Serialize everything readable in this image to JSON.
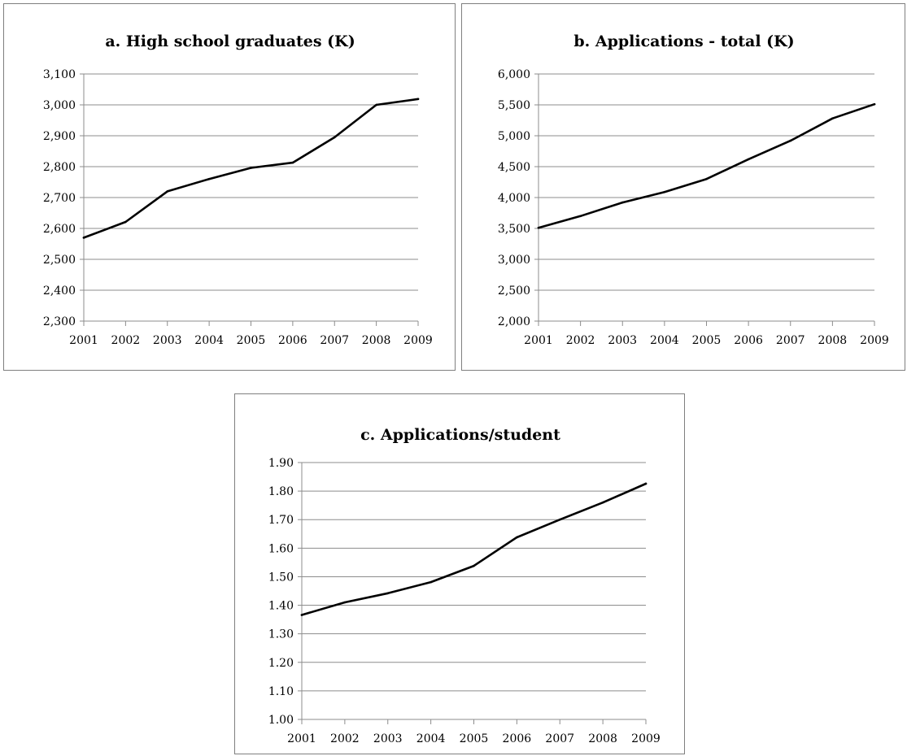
{
  "chart_data": [
    {
      "id": "a",
      "type": "line",
      "title": "a. High school graduates (K)",
      "xlabel": "",
      "ylabel": "",
      "categories": [
        "2001",
        "2002",
        "2003",
        "2004",
        "2005",
        "2006",
        "2007",
        "2008",
        "2009"
      ],
      "values": [
        2570,
        2621,
        2720,
        2760,
        2796,
        2813,
        2895,
        3000,
        3019
      ],
      "ylim": [
        2300,
        3100
      ],
      "yticks": [
        2300,
        2400,
        2500,
        2600,
        2700,
        2800,
        2900,
        3000,
        3100
      ],
      "ytick_labels": [
        "2,300",
        "2,400",
        "2,500",
        "2,600",
        "2,700",
        "2,800",
        "2,900",
        "3,000",
        "3,100"
      ],
      "grid": true,
      "legend": "none"
    },
    {
      "id": "b",
      "type": "line",
      "title": "b. Applications - total (K)",
      "xlabel": "",
      "ylabel": "",
      "categories": [
        "2001",
        "2002",
        "2003",
        "2004",
        "2005",
        "2006",
        "2007",
        "2008",
        "2009"
      ],
      "values": [
        3510,
        3700,
        3920,
        4090,
        4300,
        4620,
        4920,
        5280,
        5510
      ],
      "ylim": [
        2000,
        6000
      ],
      "yticks": [
        2000,
        2500,
        3000,
        3500,
        4000,
        4500,
        5000,
        5500,
        6000
      ],
      "ytick_labels": [
        "2,000",
        "2,500",
        "3,000",
        "3,500",
        "4,000",
        "4,500",
        "5,000",
        "5,500",
        "6,000"
      ],
      "grid": true,
      "legend": "none"
    },
    {
      "id": "c",
      "type": "line",
      "title": "c. Applications/student",
      "xlabel": "",
      "ylabel": "",
      "categories": [
        "2001",
        "2002",
        "2003",
        "2004",
        "2005",
        "2006",
        "2007",
        "2008",
        "2009"
      ],
      "values": [
        1.366,
        1.41,
        1.442,
        1.481,
        1.538,
        1.638,
        1.7,
        1.76,
        1.826
      ],
      "ylim": [
        1.0,
        1.9
      ],
      "yticks": [
        1.0,
        1.1,
        1.2,
        1.3,
        1.4,
        1.5,
        1.6,
        1.7,
        1.8,
        1.9
      ],
      "ytick_labels": [
        "1.00",
        "1.10",
        "1.20",
        "1.30",
        "1.40",
        "1.50",
        "1.60",
        "1.70",
        "1.80",
        "1.90"
      ],
      "grid": true,
      "legend": "none"
    }
  ]
}
